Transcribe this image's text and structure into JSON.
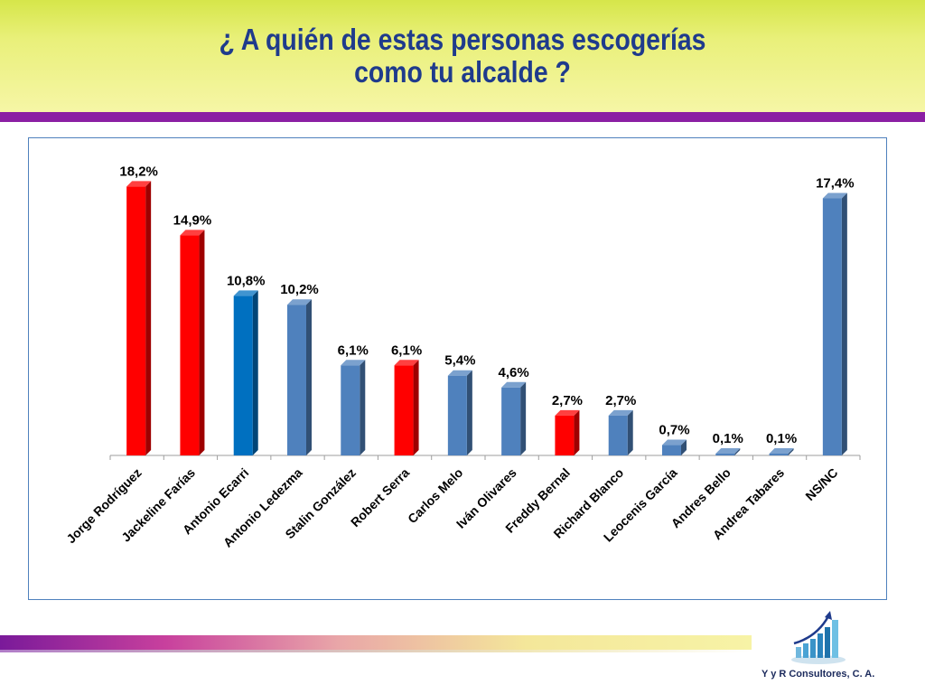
{
  "slide": {
    "title_line1": "¿ A quién de estas personas escogerías",
    "title_line2": "como tu  alcalde ?",
    "company": "Y y R Consultores, C. A."
  },
  "colors": {
    "header_gradient_top": "#d6e64a",
    "header_band": "#8b1fa3",
    "title": "#1f3b8c",
    "frame_border": "#4f81bd",
    "red_bar": "#ff0000",
    "blue_bar": "#4f81bd",
    "dark_blue_bar": "#0070c0"
  },
  "logo": {
    "icon": "rising-bar-chart-arrow-icon"
  },
  "chart_data": {
    "type": "bar",
    "title": "",
    "xlabel": "",
    "ylabel": "",
    "ylim": [
      0,
      20
    ],
    "grid": false,
    "legend": "none",
    "style": "3d-column",
    "categories": [
      "Jorge Rodríguez",
      "Jackeline Farías",
      "Antonio Ecarri",
      "Antonio Ledezma",
      "Stalin González",
      "Robert Serra",
      "Carlos Melo",
      "Iván Olivares",
      "Freddy Bernal",
      "Richard Blanco",
      "Leocenis García",
      "Andres Bello",
      "Andrea Tabares",
      "NS/NC"
    ],
    "values": [
      18.2,
      14.9,
      10.8,
      10.2,
      6.1,
      6.1,
      5.4,
      4.6,
      2.7,
      2.7,
      0.7,
      0.1,
      0.1,
      17.4
    ],
    "data_labels": [
      "18,2%",
      "14,9%",
      "10,8%",
      "10,2%",
      "6,1%",
      "6,1%",
      "5,4%",
      "4,6%",
      "2,7%",
      "2,7%",
      "0,7%",
      "0,1%",
      "0,1%",
      "17,4%"
    ],
    "bar_colors": [
      "#ff0000",
      "#ff0000",
      "#0070c0",
      "#4f81bd",
      "#4f81bd",
      "#ff0000",
      "#4f81bd",
      "#4f81bd",
      "#ff0000",
      "#4f81bd",
      "#4f81bd",
      "#4f81bd",
      "#4f81bd",
      "#4f81bd"
    ]
  }
}
